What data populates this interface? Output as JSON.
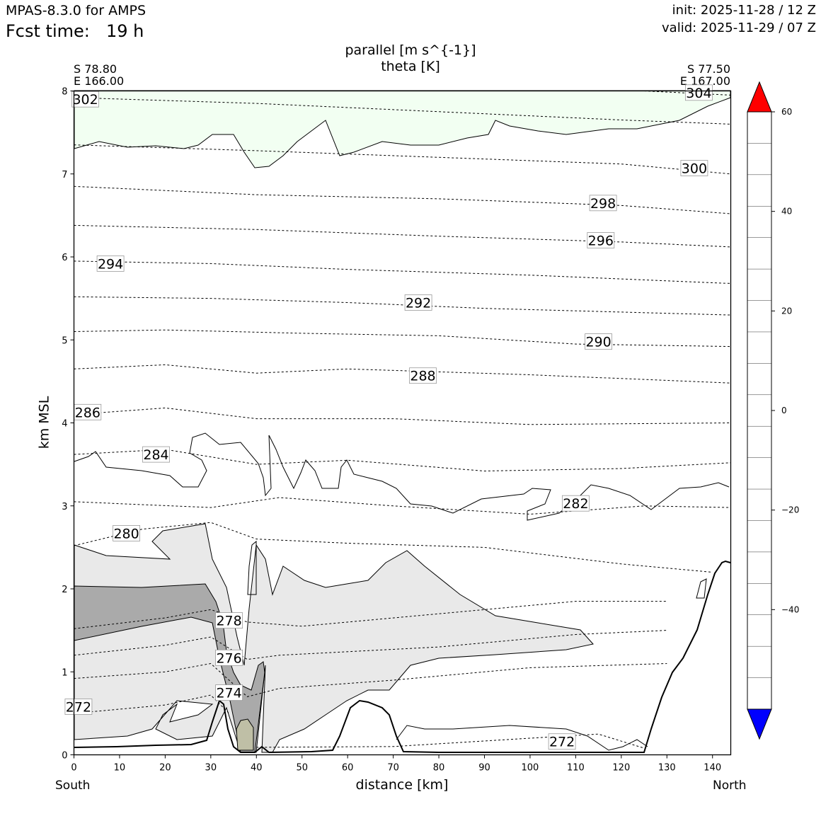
{
  "header": {
    "model": "MPAS-8.3.0 for AMPS",
    "fcst_time_label": "Fcst time:",
    "fcst_time_value": "19 h",
    "init": "init: 2025-11-28 / 12 Z",
    "valid": "valid: 2025-11-29 / 07 Z"
  },
  "endpoints": {
    "left_lat": "S 78.80",
    "left_lon": "E 166.00",
    "right_lat": "S 77.50",
    "right_lon": "E 167.00",
    "left_dir": "South",
    "right_dir": "North"
  },
  "chart_data": {
    "type": "heatmap",
    "title": "parallel [m s^{-1}]",
    "subtitle": "theta [K]",
    "xlabel": "distance [km]",
    "ylabel": "km MSL",
    "xlim": [
      0,
      144
    ],
    "ylim": [
      0,
      8
    ],
    "x_ticks": [
      0,
      10,
      20,
      30,
      40,
      50,
      60,
      70,
      80,
      90,
      100,
      110,
      120,
      130,
      140
    ],
    "y_ticks": [
      0,
      1,
      2,
      3,
      4,
      5,
      6,
      7,
      8
    ],
    "colorbar": {
      "min": -60,
      "max": 60,
      "step": 7.5,
      "ticks": [
        60,
        40,
        20,
        0,
        -20,
        -40
      ],
      "tick_labels": [
        "60",
        "40",
        "20",
        "0",
        "−20",
        "−40"
      ],
      "colors": [
        "#0000ff",
        "#00cccc",
        "#00e066",
        "#22ff22",
        "#66ff66",
        "#aaffaa",
        "#dbffdb",
        "#f2fff2",
        "#ffffff",
        "#ffffff",
        "#e9e9e9",
        "#aaaaaa",
        "#bfbfa6",
        "#ffffaa",
        "#ffff66",
        "#ffff22",
        "#ffe866",
        "#ff7070",
        "#ff0000"
      ],
      "extend": "both"
    },
    "theta_contours": [
      {
        "label": "272",
        "level": 272,
        "label_at": [
          1,
          0.58
        ],
        "points": [
          [
            0,
            0.5
          ],
          [
            20,
            0.6
          ],
          [
            30,
            0.72
          ],
          [
            34,
            0.5
          ]
        ]
      },
      {
        "label": "272",
        "level": 272,
        "label_at": [
          107,
          0.16
        ],
        "points": [
          [
            40,
            0.09
          ],
          [
            70,
            0.1
          ],
          [
            100,
            0.2
          ],
          [
            115,
            0.25
          ],
          [
            125,
            0.08
          ]
        ]
      },
      {
        "label": "274",
        "level": 274,
        "label_at": [
          34,
          0.75
        ],
        "points": [
          [
            0,
            0.92
          ],
          [
            20,
            1.0
          ],
          [
            30,
            1.1
          ],
          [
            38,
            0.7
          ],
          [
            45,
            0.8
          ],
          [
            70,
            0.9
          ],
          [
            100,
            1.05
          ],
          [
            130,
            1.1
          ]
        ]
      },
      {
        "label": "276",
        "level": 276,
        "label_at": [
          34,
          1.17
        ],
        "points": [
          [
            0,
            1.2
          ],
          [
            20,
            1.32
          ],
          [
            30,
            1.42
          ],
          [
            38,
            1.15
          ],
          [
            45,
            1.2
          ],
          [
            80,
            1.3
          ],
          [
            110,
            1.45
          ],
          [
            130,
            1.5
          ]
        ]
      },
      {
        "label": "278",
        "level": 278,
        "label_at": [
          34,
          1.62
        ],
        "points": [
          [
            0,
            1.52
          ],
          [
            20,
            1.65
          ],
          [
            30,
            1.75
          ],
          [
            38,
            1.6
          ],
          [
            50,
            1.55
          ],
          [
            80,
            1.7
          ],
          [
            110,
            1.85
          ],
          [
            130,
            1.85
          ]
        ]
      },
      {
        "label": "280",
        "level": 280,
        "label_at": [
          11.5,
          2.67
        ],
        "points": [
          [
            0,
            2.52
          ],
          [
            15,
            2.72
          ],
          [
            30,
            2.8
          ],
          [
            40,
            2.6
          ],
          [
            60,
            2.55
          ],
          [
            90,
            2.5
          ],
          [
            120,
            2.3
          ],
          [
            140,
            2.2
          ]
        ]
      },
      {
        "label": "282",
        "level": 282,
        "label_at": [
          110,
          3.03
        ],
        "points": [
          [
            0,
            3.05
          ],
          [
            30,
            2.98
          ],
          [
            45,
            3.1
          ],
          [
            70,
            3.0
          ],
          [
            100,
            2.9
          ],
          [
            125,
            3.0
          ],
          [
            144,
            2.98
          ]
        ]
      },
      {
        "label": "284",
        "level": 284,
        "label_at": [
          18,
          3.62
        ],
        "points": [
          [
            0,
            3.62
          ],
          [
            20,
            3.68
          ],
          [
            40,
            3.5
          ],
          [
            60,
            3.55
          ],
          [
            90,
            3.42
          ],
          [
            120,
            3.45
          ],
          [
            144,
            3.52
          ]
        ]
      },
      {
        "label": "286",
        "level": 286,
        "label_at": [
          3,
          4.13
        ],
        "points": [
          [
            0,
            4.1
          ],
          [
            20,
            4.18
          ],
          [
            40,
            4.05
          ],
          [
            70,
            4.05
          ],
          [
            100,
            3.98
          ],
          [
            144,
            4.0
          ]
        ]
      },
      {
        "label": "288",
        "level": 288,
        "label_at": [
          76.5,
          4.57
        ],
        "points": [
          [
            0,
            4.65
          ],
          [
            20,
            4.7
          ],
          [
            40,
            4.6
          ],
          [
            60,
            4.65
          ],
          [
            100,
            4.58
          ],
          [
            144,
            4.48
          ]
        ]
      },
      {
        "label": "290",
        "level": 290,
        "label_at": [
          115,
          4.98
        ],
        "points": [
          [
            0,
            5.1
          ],
          [
            20,
            5.12
          ],
          [
            50,
            5.08
          ],
          [
            80,
            5.05
          ],
          [
            110,
            4.95
          ],
          [
            144,
            4.92
          ]
        ]
      },
      {
        "label": "292",
        "level": 292,
        "label_at": [
          75.5,
          5.45
        ],
        "points": [
          [
            0,
            5.52
          ],
          [
            30,
            5.5
          ],
          [
            60,
            5.45
          ],
          [
            90,
            5.38
          ],
          [
            144,
            5.3
          ]
        ]
      },
      {
        "label": "294",
        "level": 294,
        "label_at": [
          8,
          5.92
        ],
        "points": [
          [
            0,
            5.95
          ],
          [
            30,
            5.92
          ],
          [
            60,
            5.85
          ],
          [
            100,
            5.78
          ],
          [
            144,
            5.68
          ]
        ]
      },
      {
        "label": "296",
        "level": 296,
        "label_at": [
          115.5,
          6.2
        ],
        "points": [
          [
            0,
            6.38
          ],
          [
            40,
            6.33
          ],
          [
            80,
            6.25
          ],
          [
            120,
            6.18
          ],
          [
            144,
            6.12
          ]
        ]
      },
      {
        "label": "298",
        "level": 298,
        "label_at": [
          116,
          6.65
        ],
        "points": [
          [
            0,
            6.85
          ],
          [
            40,
            6.75
          ],
          [
            80,
            6.7
          ],
          [
            120,
            6.62
          ],
          [
            144,
            6.52
          ]
        ]
      },
      {
        "label": "300",
        "level": 300,
        "label_at": [
          136,
          7.07
        ],
        "points": [
          [
            0,
            7.35
          ],
          [
            40,
            7.28
          ],
          [
            80,
            7.2
          ],
          [
            120,
            7.12
          ],
          [
            144,
            7.0
          ]
        ]
      },
      {
        "label": "302",
        "level": 302,
        "label_at": [
          2.5,
          7.9
        ],
        "points": [
          [
            0,
            7.92
          ],
          [
            40,
            7.85
          ],
          [
            80,
            7.75
          ],
          [
            120,
            7.65
          ],
          [
            144,
            7.6
          ]
        ]
      },
      {
        "label": "304",
        "level": 304,
        "label_at": [
          137,
          7.98
        ],
        "points": [
          [
            125,
            8.0
          ],
          [
            144,
            7.95
          ]
        ]
      }
    ]
  }
}
